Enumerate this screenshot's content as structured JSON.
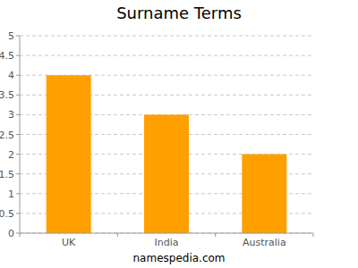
{
  "chart_data": {
    "type": "bar",
    "title": "Surname Terms",
    "categories": [
      "UK",
      "India",
      "Australia"
    ],
    "values": [
      4,
      3,
      2
    ],
    "color": "#ffa000",
    "ylim": [
      0,
      5
    ],
    "yticks": [
      0,
      0.5,
      1,
      1.5,
      2,
      2.5,
      3,
      3.5,
      4,
      4.5,
      5
    ],
    "grid": true,
    "caption": "namespedia.com"
  }
}
